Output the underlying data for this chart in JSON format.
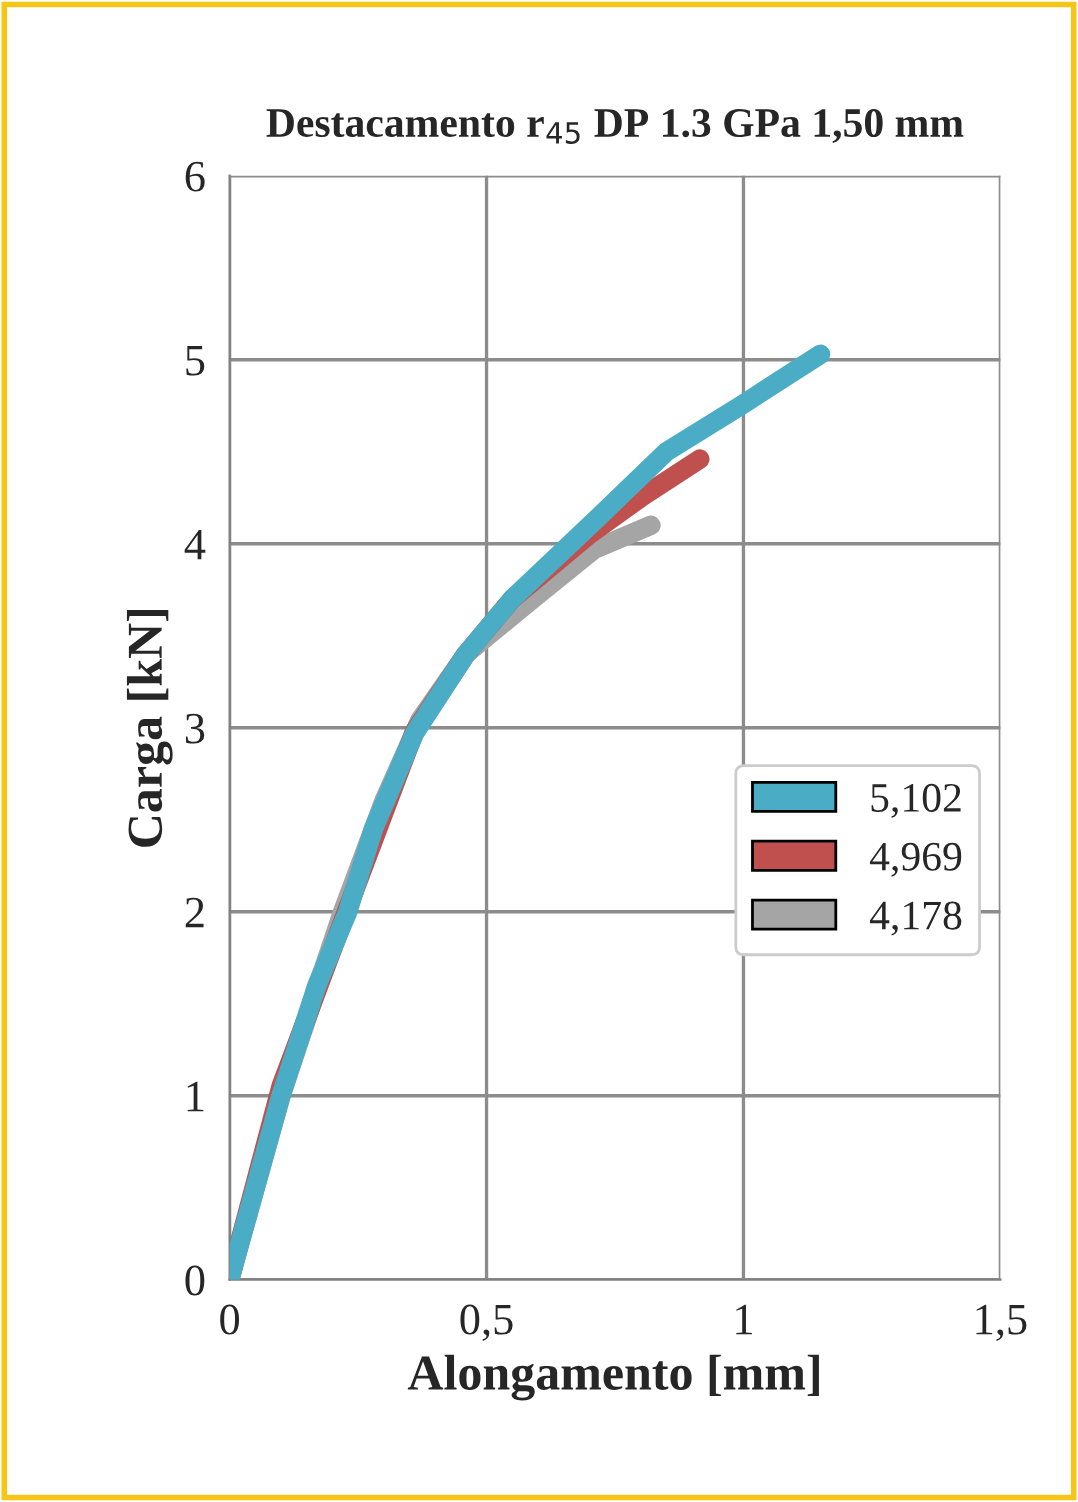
{
  "chart_data": {
    "type": "line",
    "title": "Destacamento r$_{45}$ DP 1.3 GPa 1,50 mm",
    "xlabel": "Alongamento [mm]",
    "ylabel": "Carga [kN]",
    "xlim": [
      0,
      1.5
    ],
    "xticks": [
      0,
      {
        "value": 0.5,
        "label": "0,5"
      },
      1,
      {
        "value": 1.5,
        "label": "1,5"
      }
    ],
    "ylim": [
      0,
      6
    ],
    "yticks": [
      0,
      1,
      2,
      3,
      4,
      5,
      6
    ],
    "grid": true,
    "legend": "right",
    "marker": "none",
    "line_style": "solid",
    "series": [
      {
        "name": "5,102",
        "color": "#4bacc6",
        "x": [
          0,
          0.05,
          0.1,
          0.17,
          0.23,
          0.28,
          0.36,
          0.46,
          0.55,
          0.72,
          0.85,
          1.0,
          1.15
        ],
        "values": [
          0,
          0.5,
          1.0,
          1.6,
          2.0,
          2.45,
          2.97,
          3.4,
          3.7,
          4.15,
          4.5,
          4.76,
          5.03
        ]
      },
      {
        "name": "4,969",
        "color": "#c0504d",
        "x": [
          0,
          0.1,
          0.23,
          0.36,
          0.46,
          0.55,
          0.7,
          0.8,
          0.915
        ],
        "values": [
          0,
          1.05,
          2.02,
          2.98,
          3.4,
          3.7,
          4.05,
          4.25,
          4.46
        ]
      },
      {
        "name": "4,178",
        "color": "#a5a5a5",
        "x": [
          0,
          0.1,
          0.22,
          0.3,
          0.37,
          0.46,
          0.59,
          0.71,
          0.82
        ],
        "values": [
          0,
          1.0,
          2.0,
          2.6,
          3.04,
          3.4,
          3.7,
          3.97,
          4.1
        ]
      }
    ]
  }
}
